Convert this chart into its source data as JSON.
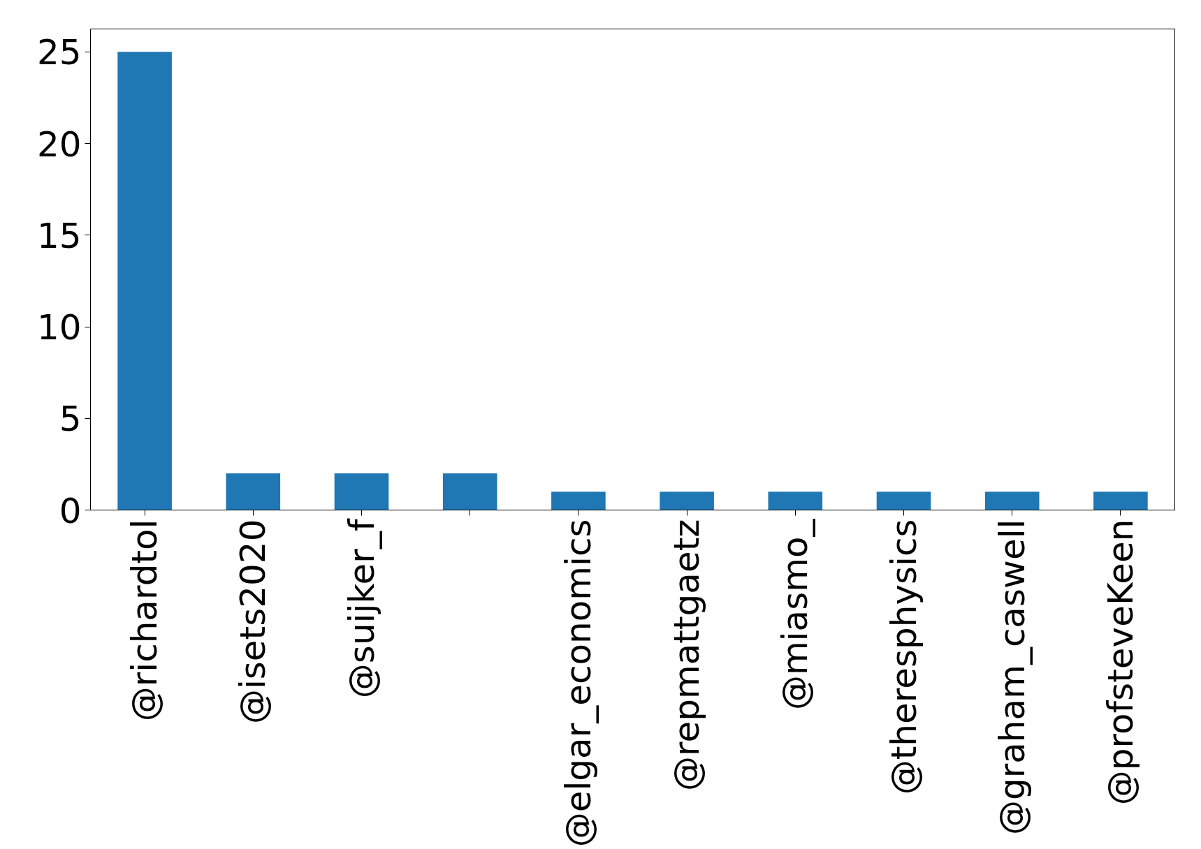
{
  "chart_data": {
    "type": "bar",
    "categories": [
      "@richardtol",
      "@isets2020",
      "@suijker_f",
      null,
      "@elgar_economics",
      "@repmattgaetz",
      "@miasmo_",
      "@theresphysics",
      "@graham_caswell",
      "@profsteveKeen"
    ],
    "values": [
      25,
      2,
      2,
      2,
      1,
      1,
      1,
      1,
      1,
      1
    ],
    "color": "#1f77b4",
    "ylim": [
      0,
      26.25
    ],
    "yticks": [
      0,
      5,
      10,
      15,
      20,
      25
    ],
    "grid": false
  }
}
